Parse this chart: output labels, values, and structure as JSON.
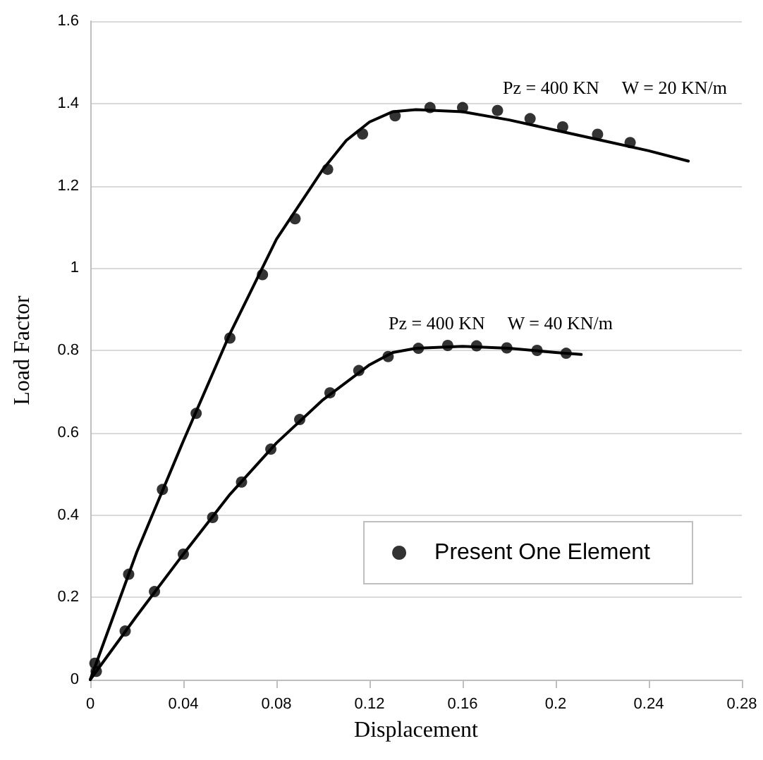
{
  "chart_data": {
    "type": "scatter",
    "xlabel": "Displacement",
    "ylabel": "Load Factor",
    "xlim": [
      0,
      0.28
    ],
    "xticks": [
      0,
      0.04,
      0.08,
      0.12,
      0.16,
      0.2,
      0.24,
      0.28
    ],
    "ylim": [
      0,
      1.6
    ],
    "yticks": [
      0,
      0.2,
      0.4,
      0.6,
      0.8,
      1,
      1.2,
      1.4,
      1.6
    ],
    "grid": "y",
    "legend": "bottom right",
    "annotations": [
      "Pz = 400 KN     W = 20 KN/m",
      "Pz = 400 KN     W = 40 KN/m"
    ],
    "series": [
      {
        "name": "Present One Element",
        "marker": "circle",
        "color": "#000000",
        "x": [
          0.002,
          0.0165,
          0.031,
          0.0455,
          0.06,
          0.074,
          0.088,
          0.102,
          0.117,
          0.131,
          0.146,
          0.16,
          0.175,
          0.189,
          0.203,
          0.218,
          0.232
        ],
        "values": [
          0.04,
          0.256,
          0.462,
          0.647,
          0.83,
          0.984,
          1.12,
          1.24,
          1.326,
          1.37,
          1.39,
          1.39,
          1.383,
          1.363,
          1.343,
          1.325,
          1.305
        ]
      },
      {
        "marker": "circle",
        "color": "#000000",
        "x": [
          0.0026,
          0.015,
          0.0276,
          0.04,
          0.0526,
          0.065,
          0.0776,
          0.09,
          0.103,
          0.1154,
          0.128,
          0.141,
          0.1536,
          0.166,
          0.179,
          0.192,
          0.2045
        ],
        "values": [
          0.02,
          0.118,
          0.214,
          0.305,
          0.394,
          0.48,
          0.56,
          0.632,
          0.697,
          0.751,
          0.785,
          0.805,
          0.812,
          0.811,
          0.806,
          0.8,
          0.793
        ]
      },
      {
        "type": "line",
        "marker": "none",
        "color": "#000000",
        "line_style": "solid",
        "x": [
          0,
          0.02,
          0.04,
          0.06,
          0.08,
          0.1,
          0.11,
          0.12,
          0.13,
          0.14,
          0.16,
          0.18,
          0.2,
          0.22,
          0.24,
          0.257
        ],
        "values": [
          0,
          0.31,
          0.58,
          0.84,
          1.07,
          1.24,
          1.31,
          1.355,
          1.38,
          1.385,
          1.38,
          1.36,
          1.335,
          1.31,
          1.285,
          1.26
        ]
      },
      {
        "type": "line",
        "marker": "none",
        "color": "#000000",
        "line_style": "solid",
        "x": [
          0,
          0.02,
          0.04,
          0.06,
          0.08,
          0.1,
          0.12,
          0.13,
          0.14,
          0.16,
          0.18,
          0.2,
          0.211
        ],
        "values": [
          0,
          0.155,
          0.305,
          0.45,
          0.575,
          0.68,
          0.765,
          0.795,
          0.805,
          0.81,
          0.805,
          0.795,
          0.79
        ]
      }
    ]
  }
}
